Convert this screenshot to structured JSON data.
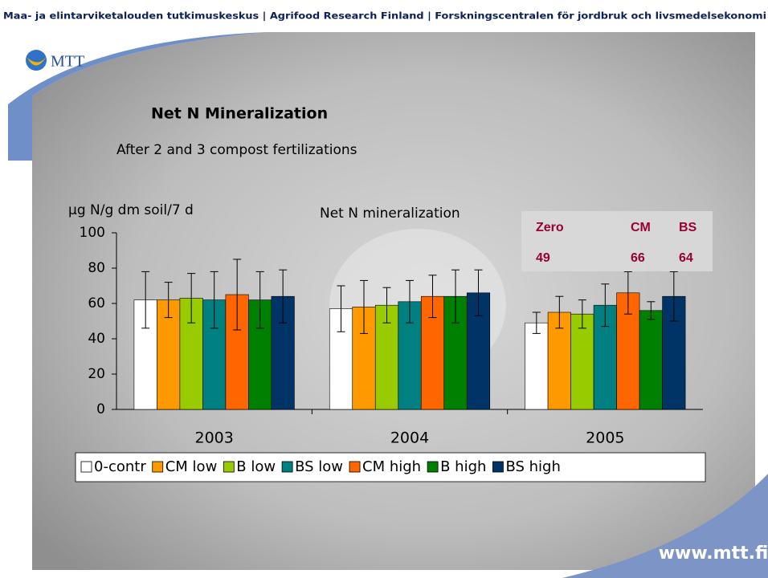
{
  "header": {
    "text": "Maa- ja elintarviketalouden tutkimuskeskus | Agrifood Research Finland | Forskningscentralen för jordbruk och livsmedelsekonomi"
  },
  "logo": {
    "text": "MTT"
  },
  "slide": {
    "title": "Net N Mineralization",
    "subtitle": "After 2 and 3 compost fertilizations"
  },
  "footer": {
    "text": "www.mtt.fi"
  },
  "chart_data": {
    "type": "bar",
    "title": "Net N mineralization",
    "y_label": "µg N/g dm soil/7 d",
    "categories": [
      "2003",
      "2004",
      "2005"
    ],
    "series": [
      {
        "name": "0-contr",
        "color": "#ffffff",
        "values": [
          62,
          57,
          49
        ],
        "errors": [
          16,
          13,
          6
        ]
      },
      {
        "name": "CM low",
        "color": "#ff9900",
        "values": [
          62,
          58,
          55
        ],
        "errors": [
          10,
          15,
          9
        ]
      },
      {
        "name": "B low",
        "color": "#99cc00",
        "values": [
          63,
          59,
          54
        ],
        "errors": [
          14,
          10,
          8
        ]
      },
      {
        "name": "BS low",
        "color": "#008080",
        "values": [
          62,
          61,
          59
        ],
        "errors": [
          16,
          12,
          12
        ]
      },
      {
        "name": "CM high",
        "color": "#ff6600",
        "values": [
          65,
          64,
          66
        ],
        "errors": [
          20,
          12,
          12
        ]
      },
      {
        "name": "B high",
        "color": "#008000",
        "values": [
          62,
          64,
          56
        ],
        "errors": [
          16,
          15,
          5
        ]
      },
      {
        "name": "BS high",
        "color": "#003366",
        "values": [
          64,
          66,
          64
        ],
        "errors": [
          15,
          13,
          14
        ]
      }
    ],
    "ylim": [
      0,
      100
    ],
    "yticks": [
      0,
      20,
      40,
      60,
      80,
      100
    ],
    "grid": false,
    "annotation": {
      "labels": [
        "Zero",
        "CM",
        "BS"
      ],
      "values": [
        49,
        66,
        64
      ]
    }
  }
}
